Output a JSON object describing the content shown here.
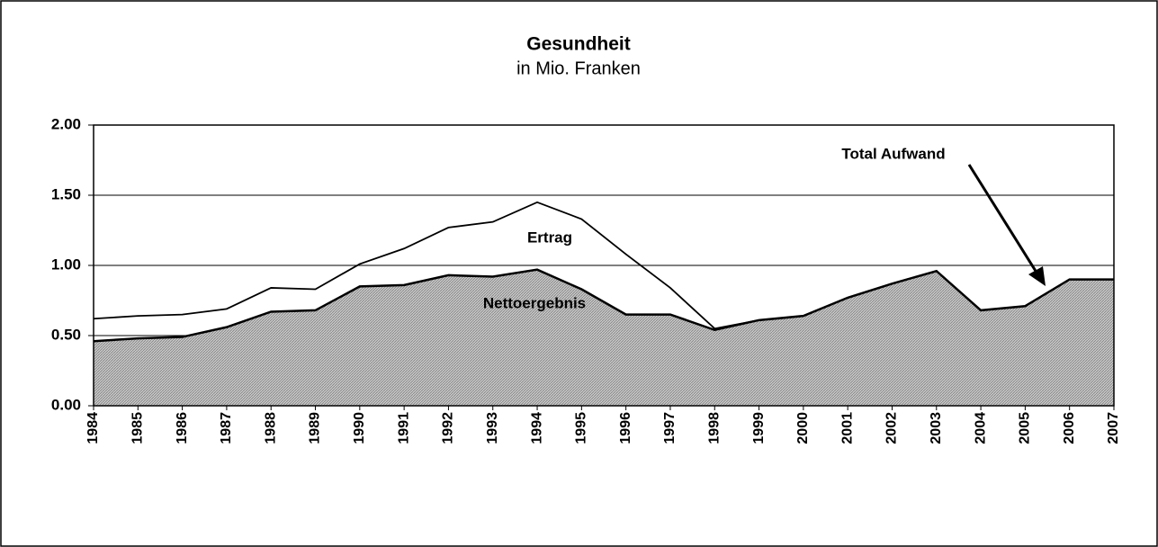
{
  "chart_data": {
    "type": "stacked_area",
    "title": "Gesundheit",
    "subtitle": "in Mio. Franken",
    "categories": [
      "1984",
      "1985",
      "1986",
      "1987",
      "1988",
      "1989",
      "1990",
      "1991",
      "1992",
      "1993",
      "1994",
      "1995",
      "1996",
      "1997",
      "1998",
      "1999",
      "2000",
      "2001",
      "2002",
      "2003",
      "2004",
      "2005",
      "2006",
      "2007"
    ],
    "series": [
      {
        "name": "Nettoergebnis",
        "color": "#a8a8a8",
        "values": [
          0.46,
          0.48,
          0.49,
          0.56,
          0.67,
          0.68,
          0.85,
          0.86,
          0.93,
          0.92,
          0.97,
          0.83,
          0.65,
          0.65,
          0.54,
          0.61,
          0.64,
          0.77,
          0.87,
          0.96,
          0.68,
          0.71,
          0.9,
          0.9
        ]
      },
      {
        "name": "Ertrag",
        "color": "#ffffff",
        "values": [
          0.16,
          0.16,
          0.16,
          0.13,
          0.17,
          0.15,
          0.16,
          0.26,
          0.34,
          0.39,
          0.48,
          0.5,
          0.43,
          0.19,
          0.01,
          0,
          0,
          0,
          0,
          0,
          0,
          0,
          0,
          0
        ]
      }
    ],
    "annotations": [
      "Total Aufwand"
    ],
    "ylim": [
      0,
      2
    ],
    "yticks": [
      {
        "value": 0,
        "label": "0.00"
      },
      {
        "value": 0.5,
        "label": "0.50"
      },
      {
        "value": 1,
        "label": "1.00"
      },
      {
        "value": 1.5,
        "label": "1.50"
      },
      {
        "value": 2,
        "label": "2.00"
      }
    ],
    "grid": true
  }
}
